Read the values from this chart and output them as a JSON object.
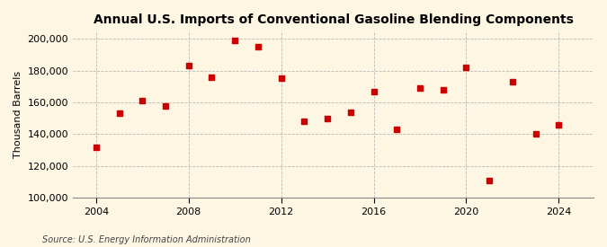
{
  "title": "Annual U.S. Imports of Conventional Gasoline Blending Components",
  "ylabel": "Thousand Barrels",
  "source": "Source: U.S. Energy Information Administration",
  "xlim": [
    2003,
    2025.5
  ],
  "ylim": [
    100000,
    205000
  ],
  "yticks": [
    100000,
    120000,
    140000,
    160000,
    180000,
    200000
  ],
  "xticks": [
    2004,
    2008,
    2012,
    2016,
    2020,
    2024
  ],
  "background_color": "#fdf6e3",
  "grid_color": "#aaaaaa",
  "marker_color": "#cc0000",
  "years": [
    2004,
    2005,
    2006,
    2007,
    2008,
    2009,
    2010,
    2011,
    2012,
    2013,
    2014,
    2015,
    2016,
    2017,
    2018,
    2019,
    2020,
    2021,
    2022,
    2023,
    2024
  ],
  "values": [
    132000,
    153000,
    161000,
    158000,
    183000,
    176000,
    199000,
    195000,
    175000,
    148000,
    150000,
    154000,
    167000,
    143000,
    169000,
    168000,
    182000,
    111000,
    173000,
    140000,
    146000
  ]
}
